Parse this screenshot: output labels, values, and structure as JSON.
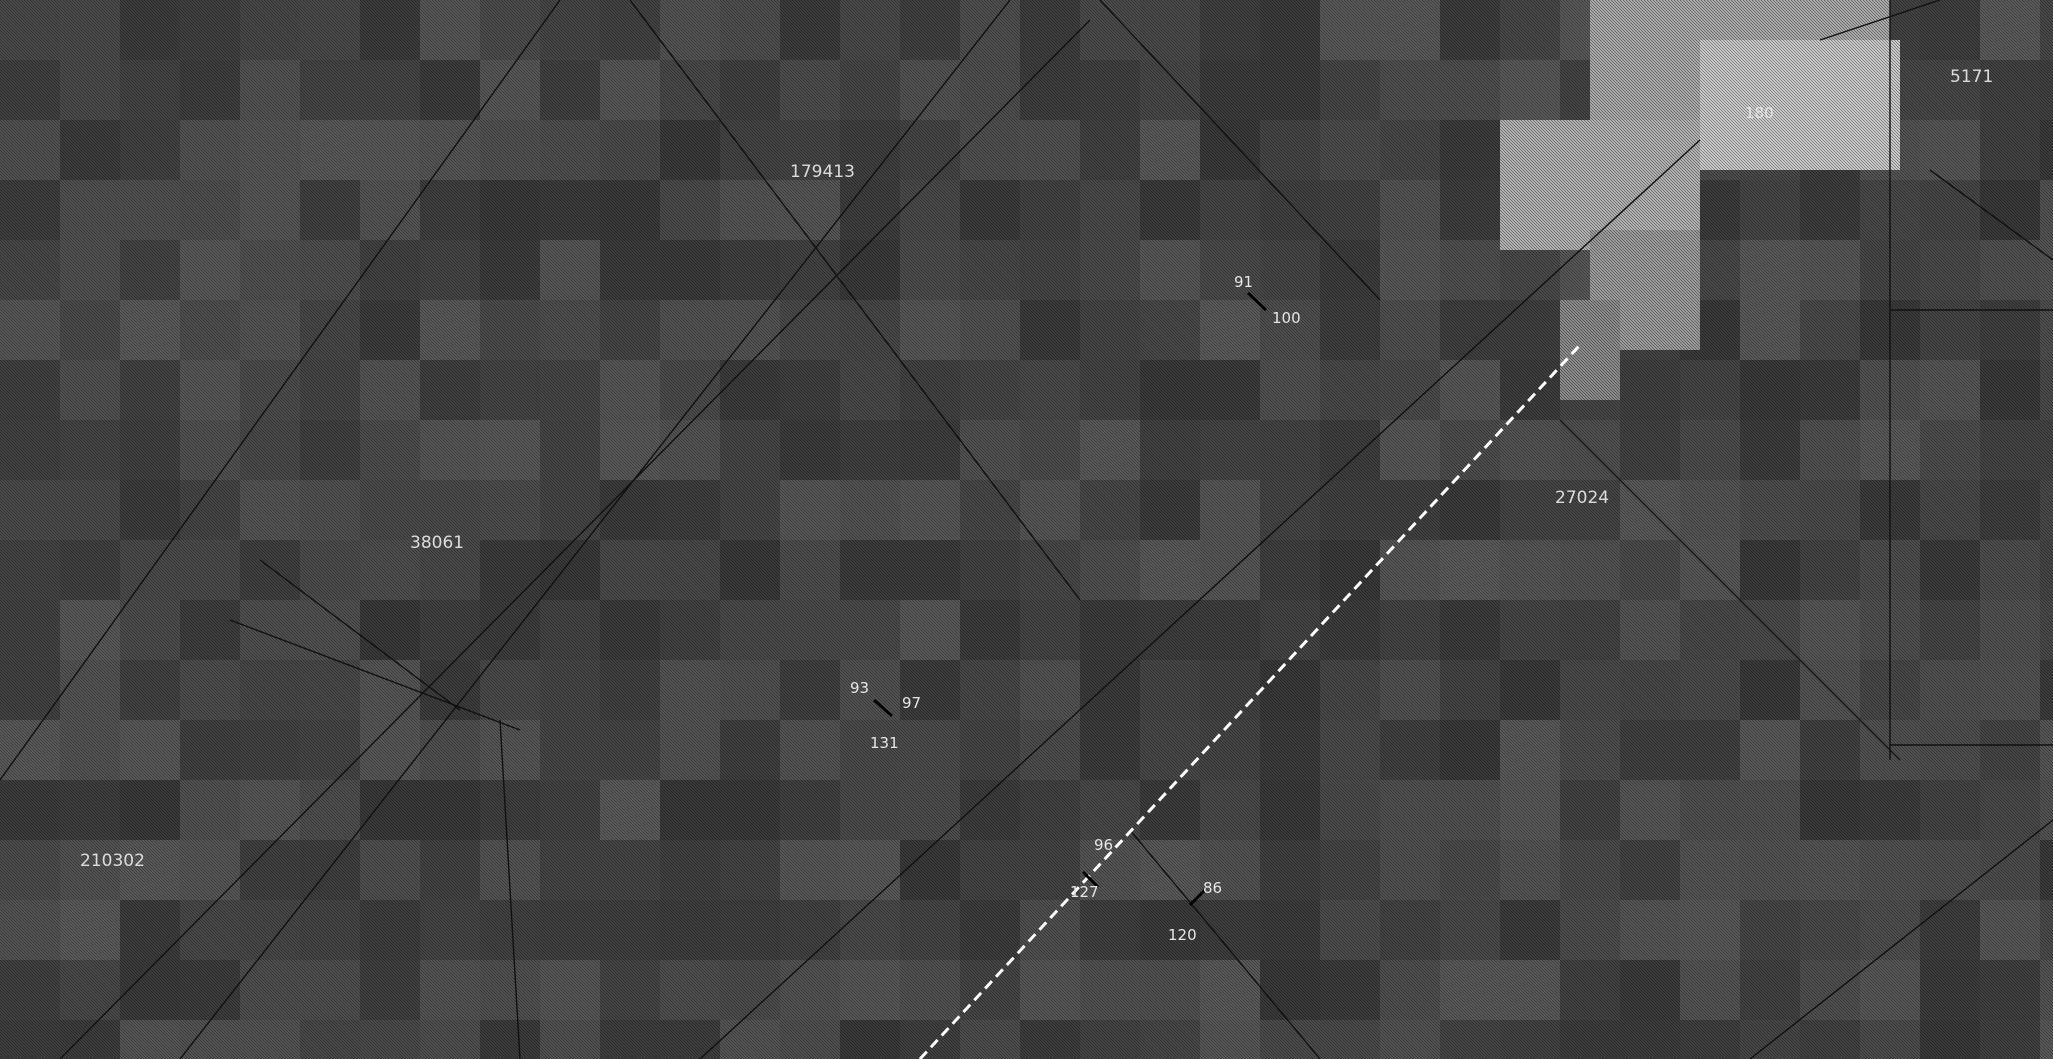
{
  "map": {
    "type": "cadastral-overlay-on-raster",
    "colors": {
      "background": "#2a2a2a",
      "parcel_lines": "#111111",
      "route_line": "#ffffff",
      "bright_area": "#b8b8b8",
      "label_text": "#dcdcdc"
    },
    "parcel_labels": [
      "179413",
      "38061",
      "210302",
      "27024",
      "5171"
    ],
    "number_labels": [
      "91",
      "100",
      "93",
      "97",
      "131",
      "96",
      "127",
      "86",
      "120",
      "180"
    ]
  }
}
